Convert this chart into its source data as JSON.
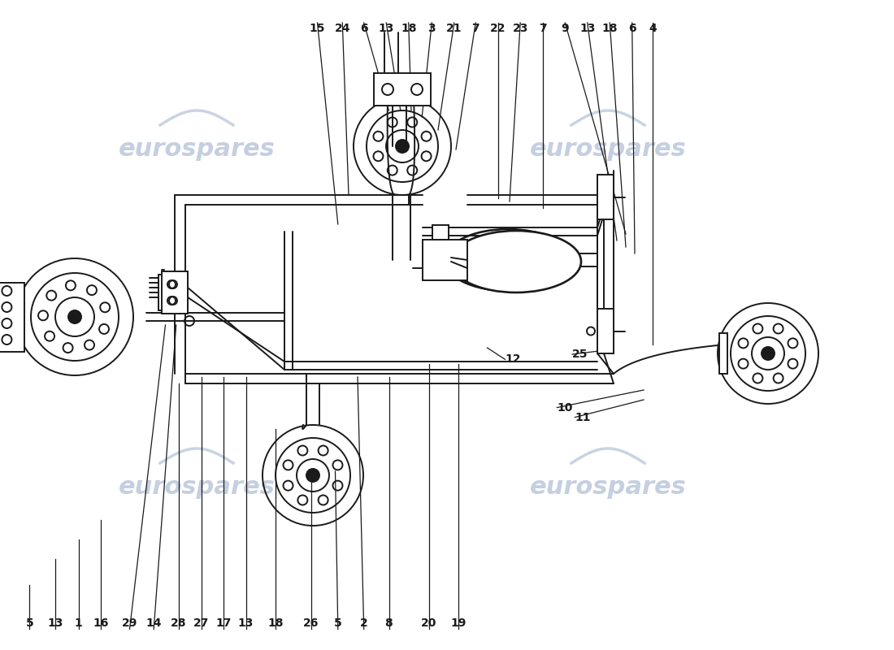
{
  "bg_color": "#ffffff",
  "line_color": "#1a1a1a",
  "wm_color": "#c5cfe0",
  "top_labels": [
    {
      "text": "15",
      "xf": 0.355,
      "yf": 0.965
    },
    {
      "text": "24",
      "xf": 0.383,
      "yf": 0.965
    },
    {
      "text": "6",
      "xf": 0.407,
      "yf": 0.965
    },
    {
      "text": "13",
      "xf": 0.432,
      "yf": 0.965
    },
    {
      "text": "18",
      "xf": 0.457,
      "yf": 0.965
    },
    {
      "text": "3",
      "xf": 0.483,
      "yf": 0.965
    },
    {
      "text": "21",
      "xf": 0.508,
      "yf": 0.965
    },
    {
      "text": "7",
      "xf": 0.532,
      "yf": 0.965
    },
    {
      "text": "22",
      "xf": 0.557,
      "yf": 0.965
    },
    {
      "text": "23",
      "xf": 0.582,
      "yf": 0.965
    },
    {
      "text": "7",
      "xf": 0.607,
      "yf": 0.965
    },
    {
      "text": "9",
      "xf": 0.632,
      "yf": 0.965
    },
    {
      "text": "13",
      "xf": 0.657,
      "yf": 0.965
    },
    {
      "text": "18",
      "xf": 0.682,
      "yf": 0.965
    },
    {
      "text": "6",
      "xf": 0.707,
      "yf": 0.965
    },
    {
      "text": "4",
      "xf": 0.73,
      "yf": 0.965
    }
  ],
  "bottom_labels": [
    {
      "text": "5",
      "xf": 0.033,
      "yf": 0.032
    },
    {
      "text": "13",
      "xf": 0.062,
      "yf": 0.032
    },
    {
      "text": "1",
      "xf": 0.088,
      "yf": 0.032
    },
    {
      "text": "16",
      "xf": 0.113,
      "yf": 0.032
    },
    {
      "text": "29",
      "xf": 0.145,
      "yf": 0.032
    },
    {
      "text": "14",
      "xf": 0.172,
      "yf": 0.032
    },
    {
      "text": "28",
      "xf": 0.2,
      "yf": 0.032
    },
    {
      "text": "27",
      "xf": 0.225,
      "yf": 0.032
    },
    {
      "text": "17",
      "xf": 0.25,
      "yf": 0.032
    },
    {
      "text": "13",
      "xf": 0.275,
      "yf": 0.032
    },
    {
      "text": "18",
      "xf": 0.308,
      "yf": 0.032
    },
    {
      "text": "26",
      "xf": 0.348,
      "yf": 0.032
    },
    {
      "text": "5",
      "xf": 0.378,
      "yf": 0.032
    },
    {
      "text": "2",
      "xf": 0.407,
      "yf": 0.032
    },
    {
      "text": "8",
      "xf": 0.435,
      "yf": 0.032
    },
    {
      "text": "20",
      "xf": 0.48,
      "yf": 0.032
    },
    {
      "text": "19",
      "xf": 0.513,
      "yf": 0.032
    }
  ],
  "mid_labels": [
    {
      "text": "25",
      "xf": 0.64,
      "yf": 0.455
    },
    {
      "text": "12",
      "xf": 0.565,
      "yf": 0.447
    },
    {
      "text": "10",
      "xf": 0.623,
      "yf": 0.373
    },
    {
      "text": "11",
      "xf": 0.643,
      "yf": 0.358
    }
  ]
}
